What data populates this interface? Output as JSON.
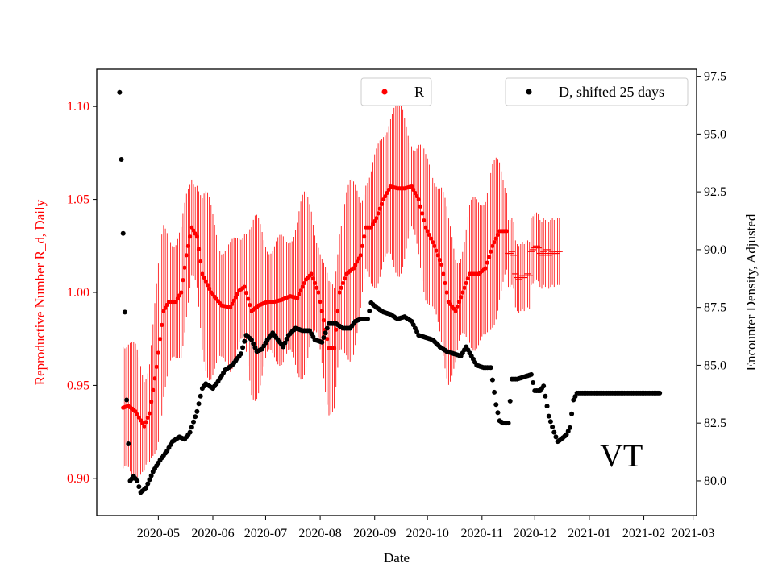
{
  "chart_data": {
    "type": "scatter",
    "title": "",
    "xlabel": "Date",
    "ylabel_left": "Reproductive Number R_d, Daily",
    "ylabel_right": "Encounter Density, Adjusted",
    "annotation": "VT",
    "colors": {
      "r_series": "#ff0000",
      "d_series": "#000000",
      "left_axis_text": "#ff0000"
    },
    "x_start_date": "2020-04-01",
    "xlim_days": [
      -5,
      336
    ],
    "ylim_left": [
      0.88,
      1.12
    ],
    "ylim_right": [
      78.5,
      97.8
    ],
    "x_ticks": [
      {
        "day": 30,
        "label": "2020-05"
      },
      {
        "day": 61,
        "label": "2020-06"
      },
      {
        "day": 91,
        "label": "2020-07"
      },
      {
        "day": 122,
        "label": "2020-08"
      },
      {
        "day": 153,
        "label": "2020-09"
      },
      {
        "day": 183,
        "label": "2020-10"
      },
      {
        "day": 214,
        "label": "2020-11"
      },
      {
        "day": 244,
        "label": "2020-12"
      },
      {
        "day": 275,
        "label": "2021-01"
      },
      {
        "day": 306,
        "label": "2021-02"
      },
      {
        "day": 334,
        "label": "2021-03"
      }
    ],
    "y_ticks_left": [
      "0.90",
      "0.95",
      "1.00",
      "1.05",
      "1.10"
    ],
    "y_ticks_right": [
      "80.0",
      "82.5",
      "85.0",
      "87.5",
      "90.0",
      "92.5",
      "95.0",
      "97.5"
    ],
    "legend": [
      {
        "label": "R",
        "position": "top-center"
      },
      {
        "label": "D, shifted 25 days",
        "position": "top-right"
      }
    ],
    "series": [
      {
        "name": "R",
        "axis": "left",
        "day_range": [
          10,
          318
        ],
        "knots": [
          [
            10,
            0.938
          ],
          [
            13,
            0.939
          ],
          [
            17,
            0.936
          ],
          [
            22,
            0.928
          ],
          [
            25,
            0.935
          ],
          [
            29,
            0.96
          ],
          [
            33,
            0.99
          ],
          [
            36,
            0.995
          ],
          [
            40,
            0.995
          ],
          [
            43,
            1.0
          ],
          [
            46,
            1.02
          ],
          [
            49,
            1.035
          ],
          [
            52,
            1.03
          ],
          [
            55,
            1.01
          ],
          [
            60,
            1.0
          ],
          [
            66,
            0.993
          ],
          [
            71,
            0.992
          ],
          [
            76,
            1.001
          ],
          [
            79,
            1.003
          ],
          [
            83,
            0.99
          ],
          [
            87,
            0.993
          ],
          [
            92,
            0.995
          ],
          [
            96,
            0.995
          ],
          [
            100,
            0.996
          ],
          [
            105,
            0.998
          ],
          [
            109,
            0.997
          ],
          [
            114,
            1.007
          ],
          [
            117,
            1.01
          ],
          [
            121,
            1.0
          ],
          [
            124,
            0.985
          ],
          [
            127,
            0.97
          ],
          [
            130,
            0.97
          ],
          [
            133,
            1.0
          ],
          [
            137,
            1.01
          ],
          [
            141,
            1.013
          ],
          [
            145,
            1.02
          ],
          [
            148,
            1.035
          ],
          [
            151,
            1.035
          ],
          [
            154,
            1.04
          ],
          [
            158,
            1.05
          ],
          [
            162,
            1.057
          ],
          [
            166,
            1.056
          ],
          [
            170,
            1.056
          ],
          [
            174,
            1.057
          ],
          [
            178,
            1.05
          ],
          [
            182,
            1.035
          ],
          [
            187,
            1.025
          ],
          [
            191,
            1.015
          ],
          [
            195,
            0.995
          ],
          [
            199,
            0.99
          ],
          [
            203,
            1.0
          ],
          [
            207,
            1.01
          ],
          [
            212,
            1.01
          ],
          [
            216,
            1.013
          ],
          [
            220,
            1.025
          ],
          [
            224,
            1.033
          ],
          [
            228,
            1.033
          ]
        ],
        "error_half_width_range": [
          0.02,
          0.05
        ],
        "tail_points": [
          [
            229,
            1.021
          ],
          [
            230,
            1.021
          ],
          [
            231,
            1.022
          ],
          [
            232,
            1.02
          ],
          [
            233,
            1.01
          ],
          [
            234,
            1.008
          ],
          [
            235,
            1.007
          ],
          [
            236,
            1.008
          ],
          [
            237,
            1.009
          ],
          [
            238,
            1.008
          ],
          [
            239,
            1.009
          ],
          [
            240,
            1.01
          ],
          [
            241,
            1.009
          ],
          [
            242,
            1.022
          ],
          [
            243,
            1.023
          ],
          [
            244,
            1.024
          ],
          [
            245,
            1.025
          ],
          [
            246,
            1.024
          ],
          [
            247,
            1.021
          ],
          [
            248,
            1.02
          ],
          [
            249,
            1.022
          ],
          [
            250,
            1.021
          ],
          [
            251,
            1.023
          ],
          [
            252,
            1.02
          ],
          [
            253,
            1.021
          ],
          [
            254,
            1.022
          ],
          [
            255,
            1.021
          ],
          [
            256,
            1.021
          ],
          [
            257,
            1.022
          ],
          [
            258,
            1.022
          ]
        ]
      },
      {
        "name": "D, shifted 25 days",
        "axis": "right",
        "day_range": [
          8,
          315
        ],
        "knots": [
          [
            8,
            96.8
          ],
          [
            9,
            93.9
          ],
          [
            10,
            90.7
          ],
          [
            11,
            87.3
          ],
          [
            12,
            83.5
          ],
          [
            13,
            81.6
          ],
          [
            14,
            80.0
          ],
          [
            16,
            80.2
          ],
          [
            18,
            80.0
          ],
          [
            20,
            79.5
          ],
          [
            23,
            79.7
          ],
          [
            27,
            80.4
          ],
          [
            31,
            80.9
          ],
          [
            35,
            81.3
          ],
          [
            38,
            81.7
          ],
          [
            42,
            81.9
          ],
          [
            45,
            81.8
          ],
          [
            48,
            82.1
          ],
          [
            52,
            83.0
          ],
          [
            55,
            84.0
          ],
          [
            57,
            84.2
          ],
          [
            61,
            84.0
          ],
          [
            64,
            84.3
          ],
          [
            68,
            84.8
          ],
          [
            72,
            85.0
          ],
          [
            77,
            85.5
          ],
          [
            80,
            86.3
          ],
          [
            83,
            86.1
          ],
          [
            86,
            85.6
          ],
          [
            89,
            85.7
          ],
          [
            92,
            86.1
          ],
          [
            95,
            86.4
          ],
          [
            98,
            86.1
          ],
          [
            101,
            85.8
          ],
          [
            104,
            86.3
          ],
          [
            108,
            86.6
          ],
          [
            112,
            86.5
          ],
          [
            116,
            86.5
          ],
          [
            119,
            86.1
          ],
          [
            123,
            86.0
          ],
          [
            127,
            86.8
          ],
          [
            131,
            86.8
          ],
          [
            135,
            86.6
          ],
          [
            139,
            86.6
          ],
          [
            142,
            86.9
          ],
          [
            145,
            87.0
          ],
          [
            149,
            87.0
          ],
          [
            151,
            87.7
          ],
          [
            154,
            87.5
          ],
          [
            158,
            87.3
          ],
          [
            162,
            87.2
          ],
          [
            166,
            87.0
          ],
          [
            170,
            87.1
          ],
          [
            174,
            86.9
          ],
          [
            178,
            86.3
          ],
          [
            182,
            86.2
          ],
          [
            186,
            86.1
          ],
          [
            190,
            85.8
          ],
          [
            194,
            85.6
          ],
          [
            198,
            85.5
          ],
          [
            202,
            85.4
          ],
          [
            205,
            85.8
          ],
          [
            208,
            85.4
          ],
          [
            211,
            85.0
          ],
          [
            215,
            84.9
          ],
          [
            219,
            84.9
          ],
          [
            222,
            83.3
          ],
          [
            224,
            82.6
          ],
          [
            226,
            82.5
          ],
          [
            229,
            82.5
          ],
          [
            231,
            84.4
          ],
          [
            234,
            84.4
          ],
          [
            238,
            84.5
          ],
          [
            242,
            84.6
          ],
          [
            244,
            83.9
          ],
          [
            247,
            83.9
          ],
          [
            249,
            84.1
          ],
          [
            252,
            82.8
          ],
          [
            255,
            82.1
          ],
          [
            257,
            81.7
          ],
          [
            259,
            81.8
          ],
          [
            262,
            82.0
          ],
          [
            264,
            82.3
          ],
          [
            266,
            83.5
          ],
          [
            268,
            83.8
          ],
          [
            315,
            83.8
          ]
        ]
      }
    ]
  }
}
